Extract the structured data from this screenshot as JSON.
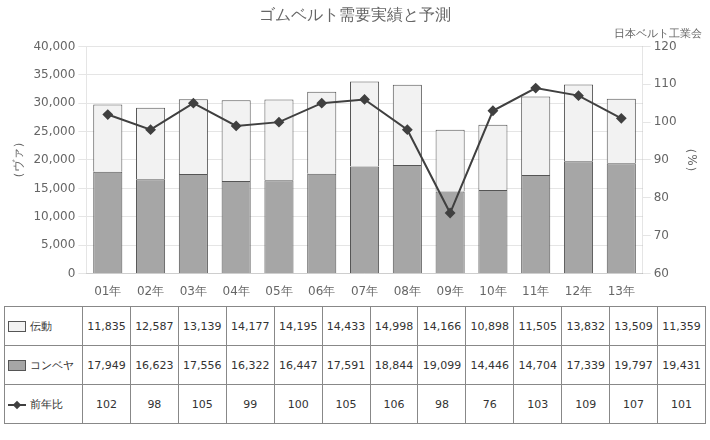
{
  "chart_data": {
    "type": "bar",
    "title": "ゴムベルト需要実績と予測",
    "subtitle": "日本ベルト工業会",
    "categories": [
      "01年",
      "02年",
      "03年",
      "04年",
      "05年",
      "06年",
      "07年",
      "08年",
      "09年",
      "10年",
      "11年",
      "12年",
      "13年"
    ],
    "stacked": true,
    "grid": true,
    "ylabel": "（ヴァ）",
    "y2label": "（%）",
    "ylim": [
      0,
      40000
    ],
    "yticks": [
      0,
      {
        "value": 5000,
        "label": "5,000"
      },
      {
        "value": 10000,
        "label": "10,000"
      },
      {
        "value": 15000,
        "label": "15,000"
      },
      {
        "value": 20000,
        "label": "20,000"
      },
      {
        "value": 25000,
        "label": "25,000"
      },
      {
        "value": 30000,
        "label": "30,000"
      },
      {
        "value": 35000,
        "label": "35,000"
      },
      {
        "value": 40000,
        "label": "40,000"
      }
    ],
    "y2lim": [
      60,
      120
    ],
    "y2ticks": [
      60,
      70,
      80,
      90,
      100,
      110,
      120
    ],
    "series": [
      {
        "name": "コンベヤ",
        "type": "bar",
        "color": "#a6a6a6",
        "values": [
          17949,
          16623,
          17556,
          16322,
          16447,
          17591,
          18844,
          19099,
          14446,
          14704,
          17339,
          19797,
          19431
        ],
        "value_labels": [
          "17,949",
          "16,623",
          "17,556",
          "16,322",
          "16,447",
          "17,591",
          "18,844",
          "19,099",
          "14,446",
          "14,704",
          "17,339",
          "19,797",
          "19,431"
        ]
      },
      {
        "name": "伝動",
        "type": "bar",
        "color": "#f2f2f2",
        "values": [
          11835,
          12587,
          13139,
          14177,
          14195,
          14433,
          14998,
          14166,
          10898,
          11505,
          13832,
          13509,
          11359
        ],
        "value_labels": [
          "11,835",
          "12,587",
          "13,139",
          "14,177",
          "14,195",
          "14,433",
          "14,998",
          "14,166",
          "10,898",
          "11,505",
          "13,832",
          "13,509",
          "11,359"
        ]
      },
      {
        "name": "前年比",
        "type": "line",
        "axis": "y2",
        "color": "#404040",
        "marker": "diamond",
        "values": [
          102,
          98,
          105,
          99,
          100,
          105,
          106,
          98,
          76,
          103,
          109,
          107,
          101
        ]
      }
    ]
  }
}
